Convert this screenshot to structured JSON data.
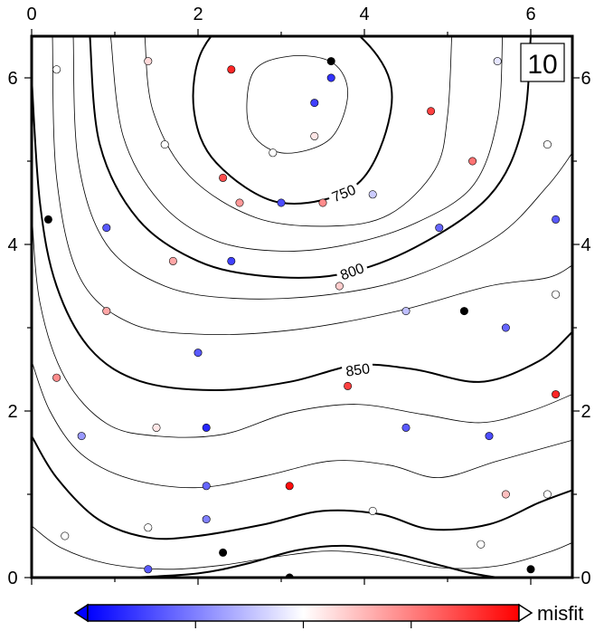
{
  "chart_data": {
    "type": "scatter",
    "subtype": "contour map with colored data points",
    "panel_tag": "10",
    "xlim": [
      0,
      6.5
    ],
    "ylim": [
      0,
      6.5
    ],
    "x_ticks": [
      0,
      2,
      4,
      6
    ],
    "y_ticks": [
      0,
      2,
      4,
      6
    ],
    "x_tick_labels": [
      "0",
      "2",
      "4",
      "6"
    ],
    "y_tick_labels": [
      "0",
      "2",
      "4",
      "6"
    ],
    "grid": false,
    "contour_labels": [
      {
        "text": "750",
        "x": 3.75,
        "y": 4.62,
        "angle": -22
      },
      {
        "text": "800",
        "x": 3.85,
        "y": 3.68,
        "angle": -20
      },
      {
        "text": "850",
        "x": 3.92,
        "y": 2.5,
        "angle": -8
      }
    ],
    "contours": [
      {
        "style": "thin",
        "closed": true,
        "points": [
          [
            3.8,
            5.8
          ],
          [
            3.58,
            5.26
          ],
          [
            3.0,
            5.1
          ],
          [
            2.62,
            5.4
          ],
          [
            2.66,
            6.06
          ],
          [
            3.1,
            6.26
          ],
          [
            3.62,
            6.18
          ]
        ]
      },
      {
        "style": "thick",
        "closed": true,
        "points": [
          [
            4.32,
            5.62
          ],
          [
            3.92,
            4.73
          ],
          [
            3.0,
            4.5
          ],
          [
            2.22,
            4.98
          ],
          [
            1.95,
            5.62
          ],
          [
            2.06,
            6.35
          ],
          [
            2.58,
            6.8
          ],
          [
            3.48,
            6.8
          ],
          [
            4.16,
            6.26
          ]
        ]
      },
      {
        "style": "thin",
        "closed": false,
        "points": [
          [
            1.36,
            6.5
          ],
          [
            1.46,
            5.6
          ],
          [
            1.9,
            4.82
          ],
          [
            2.7,
            4.32
          ],
          [
            3.6,
            4.22
          ],
          [
            4.3,
            4.36
          ],
          [
            4.85,
            4.9
          ],
          [
            5.0,
            5.55
          ],
          [
            5.05,
            6.5
          ]
        ]
      },
      {
        "style": "thin",
        "closed": false,
        "points": [
          [
            0.95,
            6.5
          ],
          [
            1.1,
            5.3
          ],
          [
            1.55,
            4.5
          ],
          [
            2.2,
            4.05
          ],
          [
            3.0,
            3.92
          ],
          [
            3.8,
            4.0
          ],
          [
            4.6,
            4.25
          ],
          [
            5.3,
            4.7
          ],
          [
            5.6,
            5.5
          ],
          [
            5.66,
            6.5
          ]
        ]
      },
      {
        "style": "thick",
        "closed": false,
        "points": [
          [
            0.7,
            6.5
          ],
          [
            0.82,
            5.2
          ],
          [
            1.28,
            4.3
          ],
          [
            2.0,
            3.8
          ],
          [
            2.8,
            3.62
          ],
          [
            3.7,
            3.64
          ],
          [
            4.6,
            3.96
          ],
          [
            5.5,
            4.58
          ],
          [
            5.9,
            5.4
          ],
          [
            6.0,
            6.5
          ]
        ]
      },
      {
        "style": "thin",
        "closed": false,
        "points": [
          [
            0.5,
            6.5
          ],
          [
            0.56,
            5.0
          ],
          [
            0.9,
            4.0
          ],
          [
            1.6,
            3.5
          ],
          [
            2.5,
            3.35
          ],
          [
            3.6,
            3.4
          ],
          [
            4.6,
            3.62
          ],
          [
            5.6,
            4.1
          ],
          [
            6.2,
            4.7
          ],
          [
            6.5,
            5.1
          ]
        ]
      },
      {
        "style": "thin",
        "closed": false,
        "points": [
          [
            0.25,
            6.5
          ],
          [
            0.3,
            4.8
          ],
          [
            0.58,
            3.6
          ],
          [
            1.2,
            3.05
          ],
          [
            2.1,
            2.92
          ],
          [
            3.2,
            2.98
          ],
          [
            4.4,
            3.2
          ],
          [
            5.5,
            3.5
          ],
          [
            6.2,
            3.6
          ],
          [
            6.5,
            3.75
          ]
        ]
      },
      {
        "style": "thick",
        "closed": false,
        "points": [
          [
            0.0,
            6.0
          ],
          [
            0.1,
            4.5
          ],
          [
            0.3,
            3.5
          ],
          [
            0.7,
            2.75
          ],
          [
            1.3,
            2.36
          ],
          [
            2.2,
            2.25
          ],
          [
            3.1,
            2.35
          ],
          [
            3.9,
            2.55
          ],
          [
            4.6,
            2.5
          ],
          [
            5.4,
            2.35
          ],
          [
            6.1,
            2.6
          ],
          [
            6.5,
            2.95
          ]
        ]
      },
      {
        "style": "thin",
        "closed": false,
        "points": [
          [
            0.0,
            4.4
          ],
          [
            0.1,
            3.3
          ],
          [
            0.4,
            2.4
          ],
          [
            0.9,
            1.85
          ],
          [
            1.5,
            1.7
          ],
          [
            2.3,
            1.72
          ],
          [
            3.1,
            1.98
          ],
          [
            3.9,
            2.08
          ],
          [
            4.7,
            1.96
          ],
          [
            5.4,
            1.86
          ],
          [
            6.0,
            2.0
          ],
          [
            6.5,
            2.2
          ]
        ]
      },
      {
        "style": "thin",
        "closed": false,
        "points": [
          [
            0.0,
            2.6
          ],
          [
            0.22,
            2.0
          ],
          [
            0.6,
            1.48
          ],
          [
            1.2,
            1.18
          ],
          [
            2.0,
            1.08
          ],
          [
            2.8,
            1.22
          ],
          [
            3.6,
            1.4
          ],
          [
            4.3,
            1.35
          ],
          [
            4.9,
            1.2
          ],
          [
            5.6,
            1.4
          ],
          [
            6.5,
            1.65
          ]
        ]
      },
      {
        "style": "thick",
        "closed": false,
        "points": [
          [
            0.0,
            1.7
          ],
          [
            0.3,
            1.2
          ],
          [
            0.8,
            0.7
          ],
          [
            1.4,
            0.48
          ],
          [
            2.0,
            0.5
          ],
          [
            2.8,
            0.64
          ],
          [
            3.5,
            0.8
          ],
          [
            4.2,
            0.76
          ],
          [
            4.8,
            0.58
          ],
          [
            5.5,
            0.64
          ],
          [
            6.1,
            0.9
          ],
          [
            6.5,
            1.05
          ]
        ]
      },
      {
        "style": "thin",
        "closed": false,
        "points": [
          [
            0.0,
            0.62
          ],
          [
            0.35,
            0.36
          ],
          [
            0.9,
            0.17
          ],
          [
            1.6,
            0.1
          ],
          [
            2.3,
            0.15
          ],
          [
            3.0,
            0.26
          ],
          [
            3.6,
            0.32
          ],
          [
            4.2,
            0.26
          ],
          [
            4.9,
            0.12
          ],
          [
            5.6,
            0.14
          ],
          [
            6.2,
            0.3
          ],
          [
            6.5,
            0.42
          ]
        ]
      },
      {
        "style": "thick",
        "closed": false,
        "points": [
          [
            1.2,
            0.0
          ],
          [
            2.0,
            0.05
          ],
          [
            2.6,
            0.17
          ],
          [
            3.2,
            0.33
          ],
          [
            3.8,
            0.38
          ],
          [
            4.4,
            0.28
          ],
          [
            4.9,
            0.15
          ],
          [
            5.3,
            0.05
          ],
          [
            5.6,
            0.0
          ]
        ]
      }
    ],
    "points": [
      {
        "x": 0.3,
        "y": 6.1,
        "misfit": 0.0
      },
      {
        "x": 1.4,
        "y": 6.2,
        "misfit": 0.15
      },
      {
        "x": 2.4,
        "y": 6.1,
        "misfit": 0.85
      },
      {
        "x": 3.6,
        "y": 6.2,
        "misfit": "black"
      },
      {
        "x": 3.6,
        "y": 6.0,
        "misfit": -0.8
      },
      {
        "x": 3.4,
        "y": 5.7,
        "misfit": -0.75
      },
      {
        "x": 4.8,
        "y": 5.6,
        "misfit": 0.75
      },
      {
        "x": 5.6,
        "y": 6.2,
        "misfit": -0.1
      },
      {
        "x": 1.6,
        "y": 5.2,
        "misfit": 0.0
      },
      {
        "x": 2.9,
        "y": 5.1,
        "misfit": 0.0
      },
      {
        "x": 3.4,
        "y": 5.3,
        "misfit": 0.1
      },
      {
        "x": 6.2,
        "y": 5.2,
        "misfit": 0.0
      },
      {
        "x": 5.3,
        "y": 5.0,
        "misfit": 0.55
      },
      {
        "x": 2.3,
        "y": 4.8,
        "misfit": 0.7
      },
      {
        "x": 2.5,
        "y": 4.5,
        "misfit": 0.4
      },
      {
        "x": 3.0,
        "y": 4.5,
        "misfit": -0.7
      },
      {
        "x": 3.5,
        "y": 4.5,
        "misfit": 0.45
      },
      {
        "x": 4.1,
        "y": 4.6,
        "misfit": -0.2
      },
      {
        "x": 0.2,
        "y": 4.3,
        "misfit": "black"
      },
      {
        "x": 0.9,
        "y": 4.2,
        "misfit": -0.65
      },
      {
        "x": 4.9,
        "y": 4.2,
        "misfit": -0.6
      },
      {
        "x": 6.3,
        "y": 4.3,
        "misfit": -0.65
      },
      {
        "x": 1.7,
        "y": 3.8,
        "misfit": 0.35
      },
      {
        "x": 2.4,
        "y": 3.8,
        "misfit": -0.75
      },
      {
        "x": 3.7,
        "y": 3.5,
        "misfit": 0.2
      },
      {
        "x": 6.3,
        "y": 3.4,
        "misfit": 0.0
      },
      {
        "x": 0.9,
        "y": 3.2,
        "misfit": 0.35
      },
      {
        "x": 4.5,
        "y": 3.2,
        "misfit": -0.25
      },
      {
        "x": 5.2,
        "y": 3.2,
        "misfit": "black"
      },
      {
        "x": 5.7,
        "y": 3.0,
        "misfit": -0.6
      },
      {
        "x": 2.0,
        "y": 2.7,
        "misfit": -0.65
      },
      {
        "x": 0.3,
        "y": 2.4,
        "misfit": 0.45
      },
      {
        "x": 3.8,
        "y": 2.3,
        "misfit": 0.75
      },
      {
        "x": 6.3,
        "y": 2.2,
        "misfit": 0.85
      },
      {
        "x": 0.6,
        "y": 1.7,
        "misfit": -0.4
      },
      {
        "x": 1.5,
        "y": 1.8,
        "misfit": 0.1
      },
      {
        "x": 2.1,
        "y": 1.8,
        "misfit": -0.85
      },
      {
        "x": 4.5,
        "y": 1.8,
        "misfit": -0.65
      },
      {
        "x": 5.5,
        "y": 1.7,
        "misfit": -0.7
      },
      {
        "x": 2.1,
        "y": 1.1,
        "misfit": -0.6
      },
      {
        "x": 3.1,
        "y": 1.1,
        "misfit": 0.95
      },
      {
        "x": 5.7,
        "y": 1.0,
        "misfit": 0.25
      },
      {
        "x": 6.2,
        "y": 1.0,
        "misfit": 0.0
      },
      {
        "x": 2.1,
        "y": 0.7,
        "misfit": -0.5
      },
      {
        "x": 4.1,
        "y": 0.8,
        "misfit": 0.0
      },
      {
        "x": 0.4,
        "y": 0.5,
        "misfit": 0.0
      },
      {
        "x": 1.4,
        "y": 0.6,
        "misfit": 0.0
      },
      {
        "x": 2.3,
        "y": 0.3,
        "misfit": "black"
      },
      {
        "x": 5.4,
        "y": 0.4,
        "misfit": 0.0
      },
      {
        "x": 1.4,
        "y": 0.1,
        "misfit": -0.65
      },
      {
        "x": 3.1,
        "y": 0.0,
        "misfit": "black"
      },
      {
        "x": 6.0,
        "y": 0.1,
        "misfit": "black"
      }
    ],
    "colorbar": {
      "label": "misfit",
      "colors": {
        "negative": "#0000ff",
        "zero": "#ffffff",
        "positive": "#ff0000"
      },
      "range": [
        -1,
        1
      ],
      "triangles": true
    }
  }
}
